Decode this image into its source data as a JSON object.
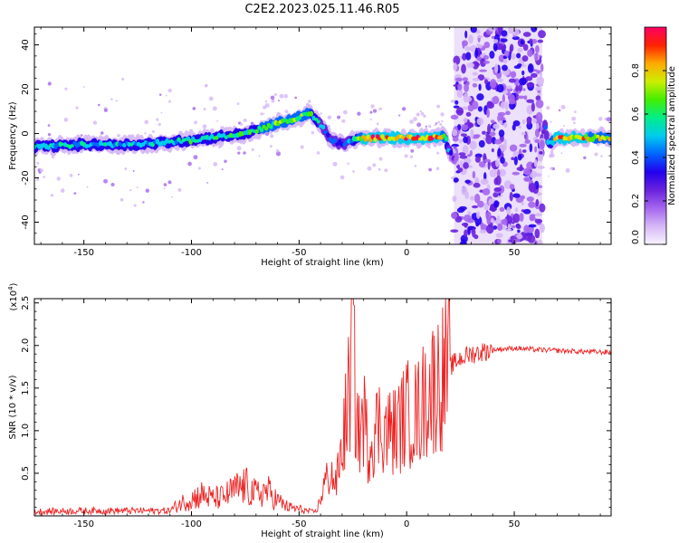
{
  "title": "C2E2.2023.025.11.46.R05",
  "colors": {
    "snr_line": "#ee2222",
    "colormap": [
      "#f8f4ff",
      "#d6b8f6",
      "#a566ee",
      "#6a22dd",
      "#2200ee",
      "#0066ff",
      "#00ccee",
      "#00ee88",
      "#44ee00",
      "#ccee00",
      "#ffaa00",
      "#ff2200",
      "#ff0066"
    ]
  },
  "chart_data": [
    {
      "type": "heatmap",
      "xlabel": "Height of straight line (km)",
      "ylabel": "Frequency (Hz)",
      "xlim": [
        -173,
        95
      ],
      "ylim": [
        -50,
        48
      ],
      "x_ticks": [
        -150,
        -100,
        -50,
        0,
        50
      ],
      "x_tick_labels": [
        "-150",
        "-100",
        "-50",
        "0",
        "50"
      ],
      "y_ticks": [
        -40,
        -20,
        0,
        20,
        40
      ],
      "y_tick_labels": [
        "-40",
        "-20",
        "0",
        "20",
        "40"
      ],
      "colorbar": {
        "label": "Normalized spectral amplitude",
        "range": [
          0,
          1
        ],
        "ticks": [
          0.0,
          0.2,
          0.4,
          0.6,
          0.8
        ],
        "tick_labels": [
          "0.0",
          "0.2",
          "0.4",
          "0.6",
          "0.8"
        ]
      },
      "ridge": {
        "x": [
          -173,
          -150,
          -125,
          -100,
          -75,
          -55,
          -45,
          -40,
          -35,
          -30,
          -25,
          -20,
          -10,
          0,
          10,
          18,
          19,
          21,
          24,
          62,
          64,
          66,
          70,
          80,
          95
        ],
        "y": [
          -6,
          -5,
          -5,
          -3,
          0,
          6,
          9,
          4,
          -3,
          -5,
          -3,
          -2,
          -2,
          -2,
          -2,
          -1,
          -6,
          -10,
          -12,
          -12,
          5,
          -5,
          -2,
          -2,
          -2
        ],
        "amplitude": [
          0.55,
          0.55,
          0.55,
          0.6,
          0.65,
          0.75,
          0.7,
          0.5,
          0.45,
          0.4,
          0.55,
          0.9,
          0.95,
          0.95,
          0.95,
          0.8,
          0.5,
          0.3,
          0.2,
          0.2,
          0.4,
          0.5,
          0.95,
          0.85,
          0.8
        ]
      },
      "noise_band": {
        "x_range": [
          22,
          63
        ],
        "y_range": [
          -50,
          48
        ],
        "amplitude": [
          0.05,
          0.35
        ]
      }
    },
    {
      "type": "line",
      "xlabel": "Height of straight line (km)",
      "ylabel": "SNR (10 * v/v)",
      "y_scale_label": "(x10",
      "y_scale_exponent": "4",
      "xlim": [
        -173,
        95
      ],
      "ylim": [
        0,
        2.55
      ],
      "x_ticks": [
        -150,
        -100,
        -50,
        0,
        50
      ],
      "x_tick_labels": [
        "-150",
        "-100",
        "-50",
        "0",
        "50"
      ],
      "y_ticks": [
        0.5,
        1.0,
        1.5,
        2.0,
        2.5
      ],
      "y_tick_labels": [
        "0.5",
        "1.0",
        "1.5",
        "2.0",
        "2.5"
      ],
      "series": [
        {
          "x": [
            -173,
            -150,
            -130,
            -110,
            -105,
            -100,
            -95,
            -90,
            -85,
            -80,
            -75,
            -70,
            -65,
            -60,
            -55,
            -50,
            -45,
            -42,
            -40,
            -38,
            -35,
            -33,
            -30,
            -28,
            -26,
            -25,
            -24,
            -22,
            -20,
            -18,
            -15,
            -12,
            -10,
            -5,
            0,
            5,
            10,
            15,
            20,
            25,
            30,
            40,
            50,
            60,
            70,
            80,
            95
          ],
          "y": [
            0.05,
            0.06,
            0.06,
            0.06,
            0.15,
            0.2,
            0.25,
            0.2,
            0.22,
            0.3,
            0.35,
            0.25,
            0.3,
            0.18,
            0.1,
            0.08,
            0.05,
            0.05,
            0.2,
            0.4,
            0.5,
            0.35,
            0.8,
            1.2,
            1.6,
            2.2,
            1.4,
            0.9,
            1.2,
            0.8,
            1.0,
            1.1,
            1.0,
            1.0,
            1.2,
            1.2,
            1.45,
            1.6,
            1.75,
            1.85,
            1.9,
            1.95,
            1.97,
            1.95,
            1.94,
            1.93,
            1.92
          ]
        }
      ]
    }
  ]
}
